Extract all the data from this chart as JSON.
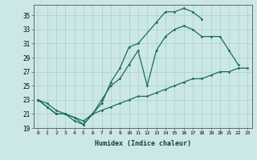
{
  "xlabel": "Humidex (Indice chaleur)",
  "background_color": "#cce8e6",
  "grid_color": "#aaccca",
  "line_color": "#1a6b63",
  "xlim": [
    -0.5,
    23.5
  ],
  "ylim": [
    19,
    36.5
  ],
  "yticks": [
    19,
    21,
    23,
    25,
    27,
    29,
    31,
    33,
    35
  ],
  "xticks": [
    0,
    1,
    2,
    3,
    4,
    5,
    6,
    7,
    8,
    9,
    10,
    11,
    12,
    13,
    14,
    15,
    16,
    17,
    18,
    19,
    20,
    21,
    22,
    23
  ],
  "s1_x": [
    0,
    1,
    2,
    3,
    4,
    5,
    6,
    7,
    8,
    9,
    10,
    11,
    13,
    14,
    15,
    16,
    17,
    18
  ],
  "s1_y": [
    23,
    22,
    21,
    21,
    20,
    19.5,
    21,
    22.5,
    25.5,
    27.5,
    30.5,
    31,
    34,
    35.5,
    35.5,
    36,
    35.5,
    34.5
  ],
  "s2_x": [
    0,
    1,
    2,
    3,
    4,
    5,
    6,
    7,
    8,
    9,
    10,
    11,
    12,
    13,
    14,
    15,
    16,
    17,
    18,
    19,
    20,
    21,
    22
  ],
  "s2_y": [
    23,
    22,
    21,
    21,
    20.5,
    19.5,
    21,
    23,
    25,
    26,
    28,
    30,
    25,
    30,
    32,
    33,
    33.5,
    33,
    32,
    32,
    32,
    30,
    28
  ],
  "s3_x": [
    0,
    1,
    2,
    3,
    4,
    5,
    6,
    7,
    8,
    9,
    10,
    11,
    12,
    13,
    14,
    15,
    16,
    17,
    18,
    19,
    20,
    21,
    22,
    23
  ],
  "s3_y": [
    23,
    22.5,
    21.5,
    21,
    20.5,
    20,
    21,
    21.5,
    22,
    22.5,
    23,
    23.5,
    23.5,
    24,
    24.5,
    25,
    25.5,
    26,
    26,
    26.5,
    27,
    27,
    27.5,
    27.5
  ]
}
